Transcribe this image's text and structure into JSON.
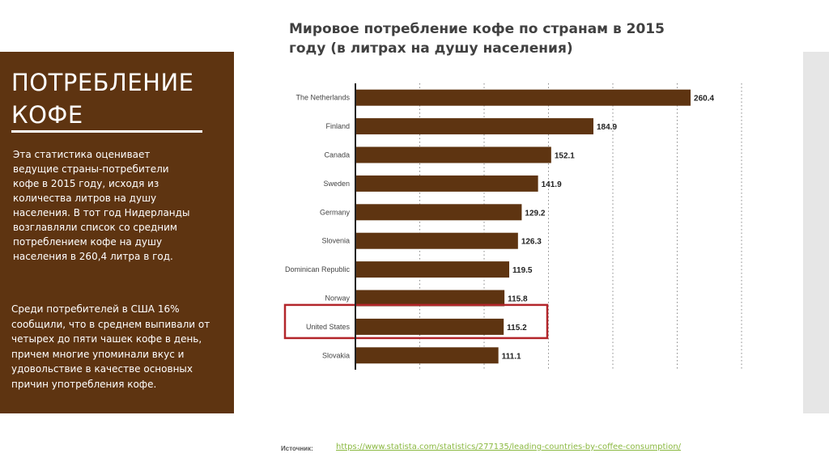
{
  "panel": {
    "title_line1": "ПОТРЕБЛЕНИЕ",
    "title_line2": "КОФЕ",
    "description": "Эта статистика оценивает ведущие страны-потребители кофе в 2015 году, исходя из количества литров на душу населения. В тот год Нидерланды возглавляли список со средним потреблением кофе на душу населения в 260,4 литра в год.",
    "note": "Среди потребителей в США 16% сообщили, что в среднем выпивали от четырех до пяти чашек кофе в день, причем многие упоминали вкус и удовольствие в качестве основных причин употребления кофе."
  },
  "source": {
    "label": "Источник:",
    "url": "https://www.statista.com/statistics/277135/leading-countries-by-coffee-consumption/"
  },
  "colors": {
    "panel": "#5e3411",
    "bar": "#5e3411",
    "highlight": "#b3262b"
  },
  "chart_data": {
    "type": "bar",
    "orientation": "horizontal",
    "title": "Мировое потребление кофе по странам в 2015 году (в литрах на душу населения)",
    "categories": [
      "The Netherlands",
      "Finland",
      "Canada",
      "Sweden",
      "Germany",
      "Slovenia",
      "Dominican Republic",
      "Norway",
      "United States",
      "Slovakia"
    ],
    "values": [
      260.4,
      184.9,
      152.1,
      141.9,
      129.2,
      126.3,
      119.5,
      115.8,
      115.2,
      111.1
    ],
    "xlim": [
      0,
      300
    ],
    "grid": true,
    "gridlines": [
      50,
      100,
      150,
      200,
      250,
      300
    ],
    "highlighted_category": "United States"
  }
}
